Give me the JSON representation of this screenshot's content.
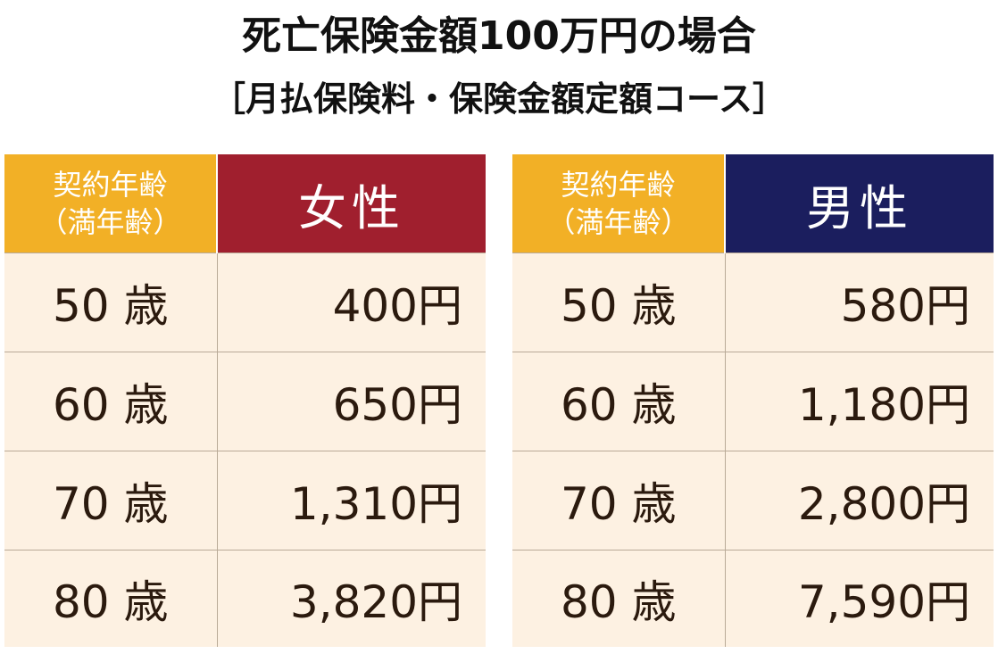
{
  "title_line1": "死亡保険金額100万円の場合",
  "title_line2": "［月払保険料・保険金額定額コース］",
  "age_header_line1": "契約年齢",
  "age_header_line2": "（満年齢）",
  "female": {
    "label": "女性",
    "color": "#a01f2e",
    "rows": [
      {
        "age": "50 歳",
        "price": "400円"
      },
      {
        "age": "60 歳",
        "price": "650円"
      },
      {
        "age": "70 歳",
        "price": "1,310円"
      },
      {
        "age": "80 歳",
        "price": "3,820円"
      }
    ]
  },
  "male": {
    "label": "男性",
    "color": "#1b1e5e",
    "rows": [
      {
        "age": "50 歳",
        "price": "580円"
      },
      {
        "age": "60 歳",
        "price": "1,180円"
      },
      {
        "age": "70 歳",
        "price": "2,800円"
      },
      {
        "age": "80 歳",
        "price": "7,590円"
      }
    ]
  },
  "colors": {
    "age_header": "#f2b026",
    "cell_background": "#fdf1e2",
    "text": "#2b1a0e"
  }
}
